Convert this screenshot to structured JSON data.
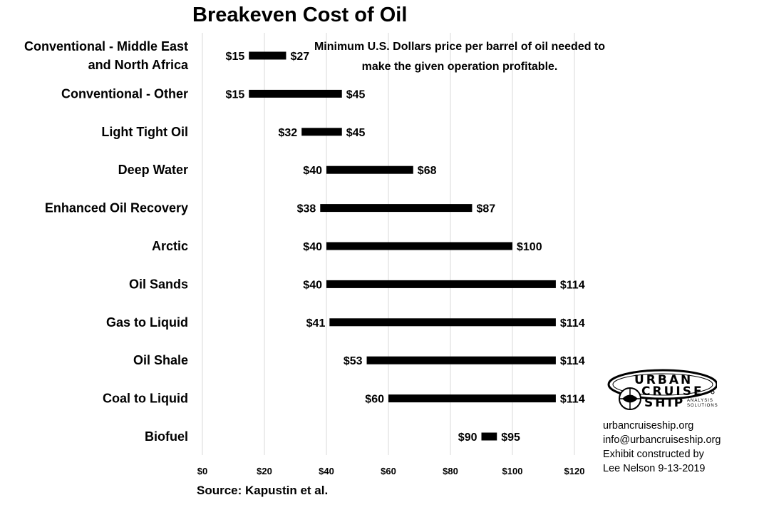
{
  "chart_data": {
    "type": "bar",
    "subtype": "floating-range",
    "title": "Breakeven Cost of Oil",
    "annotation": "Minimum U.S. Dollars price per barrel of oil needed to make the given operation profitable.",
    "source": "Source: Kapustin et al.",
    "xlim": [
      0,
      120
    ],
    "xticks": [
      0,
      20,
      40,
      60,
      80,
      100,
      120
    ],
    "xtick_labels": [
      "$0",
      "$20",
      "$40",
      "$60",
      "$80",
      "$100",
      "$120"
    ],
    "grid": "vertical",
    "legend": "none",
    "bar_color": "#000000",
    "grid_color": "#d9d9d9",
    "categories": [
      "Conventional - Middle East and North Africa",
      "Conventional - Other",
      "Light Tight Oil",
      "Deep Water",
      "Enhanced Oil Recovery",
      "Arctic",
      "Oil Sands",
      "Gas to Liquid",
      "Oil Shale",
      "Coal to Liquid",
      "Biofuel"
    ],
    "category_lines": [
      [
        "Conventional - Middle East",
        "and North Africa"
      ],
      [
        "Conventional - Other"
      ],
      [
        "Light Tight Oil"
      ],
      [
        "Deep Water"
      ],
      [
        "Enhanced Oil Recovery"
      ],
      [
        "Arctic"
      ],
      [
        "Oil Sands"
      ],
      [
        "Gas to Liquid"
      ],
      [
        "Oil Shale"
      ],
      [
        "Coal to Liquid"
      ],
      [
        "Biofuel"
      ]
    ],
    "low": [
      15,
      15,
      32,
      40,
      38,
      40,
      40,
      41,
      53,
      60,
      90
    ],
    "high": [
      27,
      45,
      45,
      68,
      87,
      100,
      114,
      114,
      114,
      114,
      95
    ],
    "low_labels": [
      "$15",
      "$15",
      "$32",
      "$40",
      "$38",
      "$40",
      "$40",
      "$41",
      "$53",
      "$60",
      "$90"
    ],
    "high_labels": [
      "$27",
      "$45",
      "$45",
      "$68",
      "$87",
      "$100",
      "$114",
      "$114",
      "$114",
      "$114",
      "$95"
    ]
  },
  "branding": {
    "logo_lines": [
      "URBAN",
      "CRUISE",
      "SHIP"
    ],
    "logo_sub": [
      "ANALYSIS",
      "SOLUTIONS"
    ],
    "website": "urbancruiseship.org",
    "email": "info@urbancruiseship.org",
    "credit_line1": "Exhibit constructed by",
    "credit_line2": "Lee Nelson 9-13-2019"
  }
}
